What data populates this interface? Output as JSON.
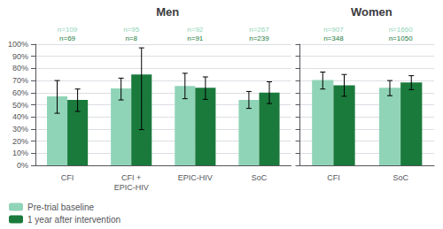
{
  "chart_data": [
    {
      "type": "bar",
      "title": "Men",
      "categories": [
        "CFI",
        "CFI +\nEPIC-HIV",
        "EPIC-HIV",
        "SoC"
      ],
      "series": [
        {
          "name": "Pre-trial baseline",
          "color": "#90D4B8",
          "values": [
            0.57,
            0.635,
            0.655,
            0.54
          ],
          "error_low": [
            0.14,
            0.095,
            0.105,
            0.07
          ],
          "error_high": [
            0.13,
            0.085,
            0.105,
            0.07
          ],
          "annotations": [
            "n=109",
            "n=95",
            "n=92",
            "n=267"
          ]
        },
        {
          "name": "1 year after intervention",
          "color": "#1A7A3C",
          "values": [
            0.54,
            0.75,
            0.64,
            0.6
          ],
          "error_low": [
            0.095,
            0.455,
            0.095,
            0.09
          ],
          "error_high": [
            0.09,
            0.22,
            0.09,
            0.09
          ],
          "annotations": [
            "n=69",
            "n=8",
            "n=91",
            "n=239"
          ]
        }
      ],
      "ylim": [
        0,
        1.0
      ],
      "yticks": [
        {
          "value": 0.0,
          "label": "0%"
        },
        {
          "value": 0.1,
          "label": "10%"
        },
        {
          "value": 0.2,
          "label": "20%"
        },
        {
          "value": 0.3,
          "label": "30%"
        },
        {
          "value": 0.4,
          "label": "40%"
        },
        {
          "value": 0.5,
          "label": "50%"
        },
        {
          "value": 0.6,
          "label": "60%"
        },
        {
          "value": 0.7,
          "label": "70%"
        },
        {
          "value": 0.8,
          "label": "80%"
        },
        {
          "value": 0.9,
          "label": "90%"
        },
        {
          "value": 1.0,
          "label": "100%"
        }
      ],
      "grid": true,
      "legend": "lower left"
    },
    {
      "type": "bar",
      "title": "Women",
      "categories": [
        "CFI",
        "SoC"
      ],
      "series": [
        {
          "name": "Pre-trial baseline",
          "color": "#90D4B8",
          "values": [
            0.705,
            0.64
          ],
          "error_low": [
            0.075,
            0.065
          ],
          "error_high": [
            0.065,
            0.06
          ],
          "annotations": [
            "n=907",
            "n=1660"
          ]
        },
        {
          "name": "1 year after intervention",
          "color": "#1A7A3C",
          "values": [
            0.66,
            0.685
          ],
          "error_low": [
            0.09,
            0.06
          ],
          "error_high": [
            0.09,
            0.055
          ],
          "annotations": [
            "n=348",
            "n=1050"
          ]
        }
      ],
      "ylim": [
        0,
        1.0
      ],
      "yticks": [
        {
          "value": 0.0,
          "label": "0%"
        },
        {
          "value": 0.1,
          "label": "10%"
        },
        {
          "value": 0.2,
          "label": "20%"
        },
        {
          "value": 0.3,
          "label": "30%"
        },
        {
          "value": 0.4,
          "label": "40%"
        },
        {
          "value": 0.5,
          "label": "50%"
        },
        {
          "value": 0.6,
          "label": "60%"
        },
        {
          "value": 0.7,
          "label": "70%"
        },
        {
          "value": 0.8,
          "label": "80%"
        },
        {
          "value": 0.9,
          "label": "90%"
        },
        {
          "value": 1.0,
          "label": "100%"
        }
      ],
      "grid": true,
      "tick_labels": "x"
    }
  ]
}
